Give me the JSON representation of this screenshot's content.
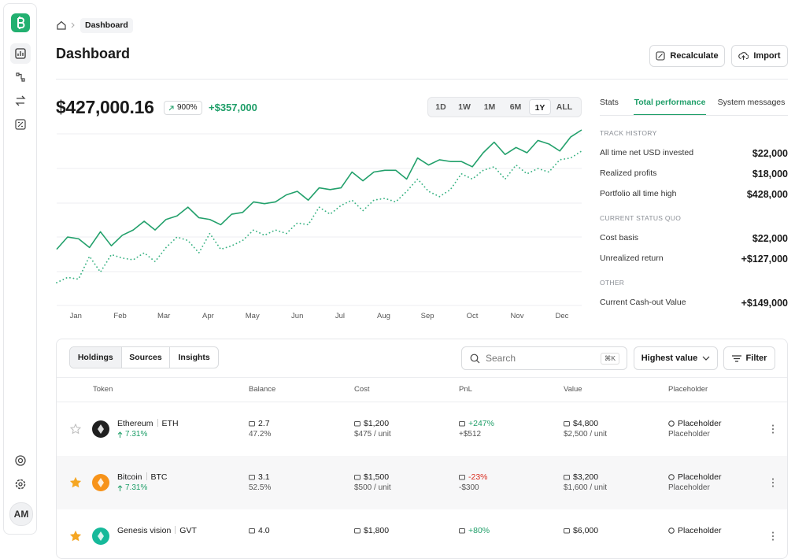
{
  "breadcrumb": "Dashboard",
  "title": "Dashboard",
  "actions": [
    "Recalculate",
    "Import"
  ],
  "summary": {
    "total": "$427,000.16",
    "change_pct": "900%",
    "change_abs": "+$357,000"
  },
  "ranges": [
    "1D",
    "1W",
    "1M",
    "6M",
    "1Y",
    "ALL"
  ],
  "active_range": "1Y",
  "chart_data": {
    "type": "line",
    "x": [
      0,
      1,
      2,
      3,
      4,
      5,
      6,
      7,
      8,
      9,
      10,
      11,
      12,
      13,
      14,
      15,
      16,
      17,
      18,
      19,
      20,
      21,
      22,
      23,
      24,
      25,
      26,
      27,
      28,
      29,
      30,
      31,
      32,
      33,
      34,
      35,
      36,
      37,
      38,
      39,
      40,
      41,
      42,
      43,
      44,
      45,
      46,
      47,
      48
    ],
    "xlim": [
      0,
      48
    ],
    "xticks": [
      {
        "value": 1.75,
        "label": "Jan"
      },
      {
        "value": 5.8,
        "label": "Feb"
      },
      {
        "value": 9.8,
        "label": "Mar"
      },
      {
        "value": 13.85,
        "label": "Apr"
      },
      {
        "value": 17.9,
        "label": "May"
      },
      {
        "value": 22,
        "label": "Jun"
      },
      {
        "value": 25.9,
        "label": "Jul"
      },
      {
        "value": 29.9,
        "label": "Aug"
      },
      {
        "value": 33.9,
        "label": "Sep"
      },
      {
        "value": 38,
        "label": "Oct"
      },
      {
        "value": 42.1,
        "label": "Nov"
      },
      {
        "value": 46.2,
        "label": "Dec"
      }
    ],
    "ylim": [
      0,
      100
    ],
    "series": [
      {
        "color": "#22a06b",
        "style": "solid",
        "values": [
          32,
          39,
          38,
          33,
          42,
          34,
          40,
          43,
          48,
          43,
          49,
          51,
          56,
          50,
          49,
          46,
          52,
          53,
          59,
          58,
          59,
          63,
          65,
          60,
          67,
          66,
          67,
          76,
          71,
          76,
          77,
          77,
          72,
          84,
          80,
          83,
          82,
          82,
          79,
          87,
          93,
          86,
          90,
          87,
          94,
          92,
          88,
          96,
          100
        ]
      },
      {
        "color": "#3bb384",
        "style": "dotted",
        "values": [
          13,
          16,
          15,
          28,
          19,
          29,
          27,
          26,
          30,
          25,
          33,
          39,
          37,
          30,
          41,
          32,
          34,
          37,
          43,
          40,
          43,
          41,
          47,
          46,
          56,
          52,
          57,
          60,
          54,
          60,
          61,
          59,
          65,
          72,
          65,
          62,
          66,
          75,
          72,
          77,
          79,
          72,
          80,
          75,
          78,
          76,
          83,
          84,
          88
        ]
      }
    ]
  },
  "panel": {
    "tabs": [
      "Stats",
      "Total performance",
      "System messages"
    ],
    "active_tab": "Total performance",
    "sections": [
      {
        "heading": "TRACK HISTORY",
        "rows": [
          {
            "label": "All time net USD invested",
            "value": "$22,000"
          },
          {
            "label": "Realized profits",
            "value": "$18,000"
          },
          {
            "label": "Portfolio all time high",
            "value": "$428,000"
          }
        ]
      },
      {
        "heading": "CURRENT STATUS QUO",
        "rows": [
          {
            "label": "Cost basis",
            "value": "$22,000"
          },
          {
            "label": "Unrealized return",
            "value": "+$127,000"
          }
        ]
      },
      {
        "heading": "OTHER",
        "rows": [
          {
            "label": "Current Cash-out Value",
            "value": "+$149,000"
          }
        ]
      }
    ]
  },
  "holdings": {
    "tabs": [
      "Holdings",
      "Sources",
      "Insights"
    ],
    "active_tab": "Holdings",
    "search_placeholder": "Search",
    "shortcut": "⌘K",
    "sort": "Highest value",
    "filter": "Filter",
    "columns": [
      "Token",
      "Balance",
      "Cost",
      "PnL",
      "Value",
      "Placeholder"
    ],
    "rows": [
      {
        "starred": false,
        "color": "#1f1f1f",
        "name": "Ethereum",
        "symbol": "ETH",
        "change": "7.31%",
        "balance": "2.7",
        "balance_sub": "47.2%",
        "cost": "$1,200",
        "cost_sub": "$475 / unit",
        "pnl": "+247%",
        "pnl_sub": "+$512",
        "value": "$4,800",
        "value_sub": "$2,500 / unit",
        "placeholder": "Placeholder",
        "placeholder_sub": "Placeholder"
      },
      {
        "starred": true,
        "color": "#f7931a",
        "name": "Bitcoin",
        "symbol": "BTC",
        "change": "7.31%",
        "balance": "3.1",
        "balance_sub": "52.5%",
        "cost": "$1,500",
        "cost_sub": "$500 / unit",
        "pnl": "-23%",
        "pnl_sub": "-$300",
        "value": "$3,200",
        "value_sub": "$1,600 / unit",
        "placeholder": "Placeholder",
        "placeholder_sub": "Placeholder"
      },
      {
        "starred": true,
        "color": "#16b99a",
        "name": "Genesis vision",
        "symbol": "GVT",
        "balance": "4.0",
        "cost": "$1,800",
        "pnl": "+80%",
        "value": "$6,000",
        "placeholder": "Placeholder"
      }
    ]
  },
  "user": {
    "initials": "AM"
  }
}
